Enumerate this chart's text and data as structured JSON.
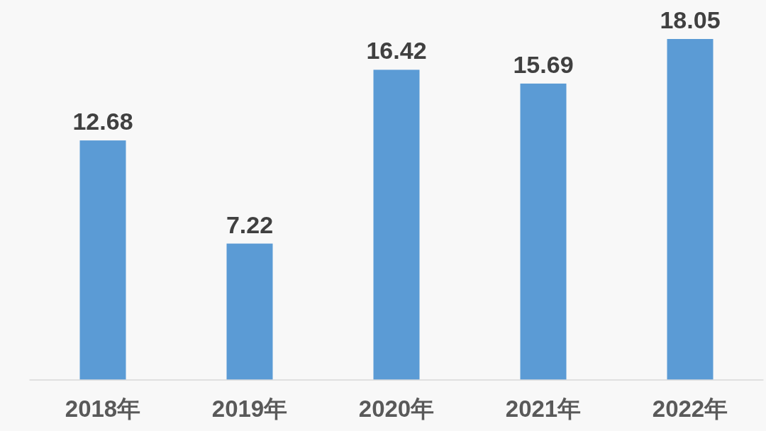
{
  "chart_data": {
    "type": "bar",
    "categories": [
      "2018年",
      "2019年",
      "2020年",
      "2021年",
      "2022年"
    ],
    "values": [
      12.68,
      7.22,
      16.42,
      15.69,
      18.05
    ],
    "color": "#5b9bd5",
    "data_labels": true
  }
}
